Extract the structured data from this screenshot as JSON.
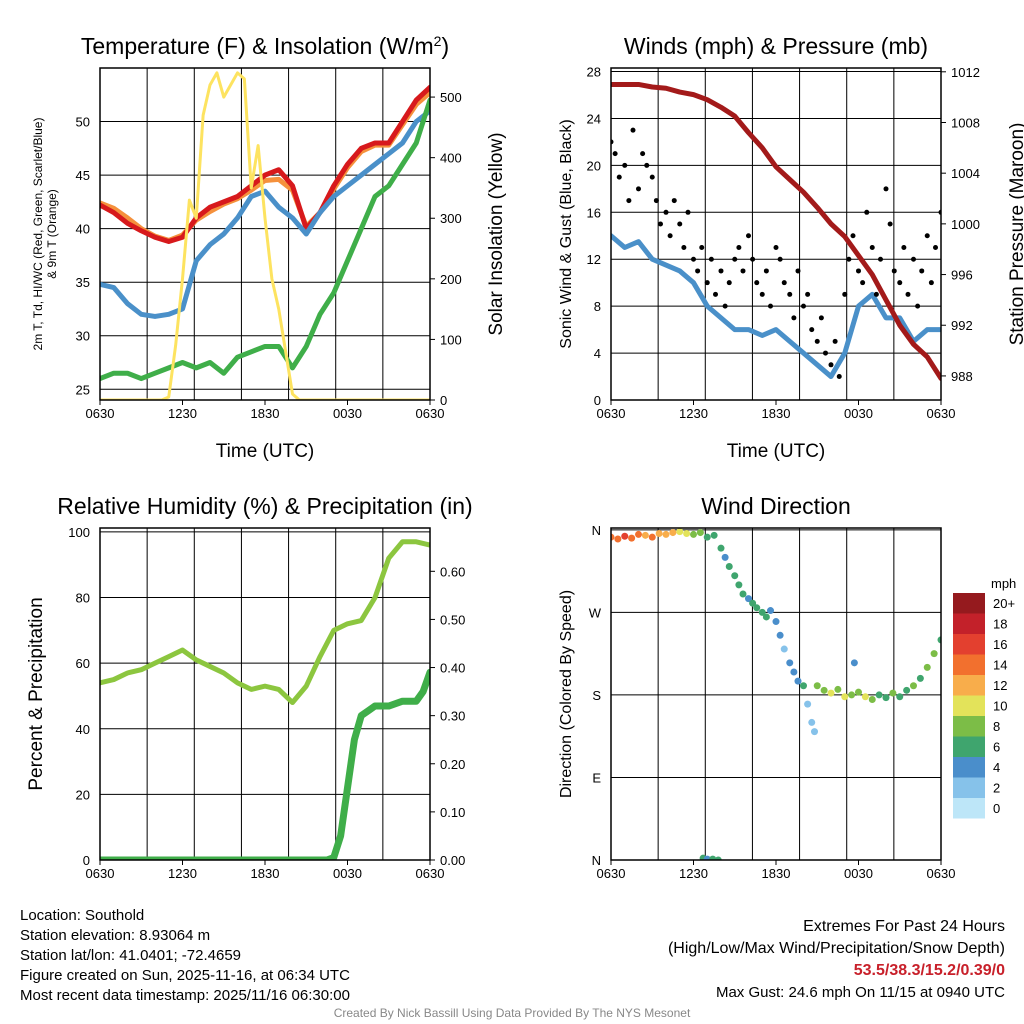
{
  "chart_data": [
    {
      "type": "line",
      "title": "Temperature (F) & Insolation (W/m²)",
      "xlabel": "Time (UTC)",
      "ylabel": "2m T, Td, HI/WC (Red, Green, Scarlet/Blue) & 9m T (Orange)",
      "ylabel_line1": "2m T, Td, HI/WC (Red, Green, Scarlet/Blue)",
      "ylabel_line2": "& 9m T (Orange)",
      "y2label": "Solar Insolation (Yellow)",
      "xticks": [
        "0630",
        "1230",
        "1830",
        "0030",
        "0630"
      ],
      "yticks": [
        "25",
        "30",
        "35",
        "40",
        "45",
        "50"
      ],
      "y2ticks": [
        "0",
        "100",
        "200",
        "300",
        "400",
        "500"
      ],
      "ylim": [
        24,
        55
      ],
      "y2lim": [
        0,
        548
      ],
      "xlim": [
        0,
        24
      ],
      "series": [
        {
          "name": "9m T",
          "color": "#f5913c",
          "axis": "left",
          "x": [
            0,
            1,
            2,
            3,
            4,
            5,
            6,
            7,
            8,
            9,
            10,
            11,
            12,
            13,
            14,
            15,
            16,
            17,
            18,
            19,
            20,
            21,
            22,
            23,
            24
          ],
          "y": [
            42.4,
            41.9,
            41,
            40,
            39.3,
            38.9,
            39.4,
            40.8,
            41.6,
            42.3,
            42.8,
            43.6,
            44.5,
            44.6,
            43.6,
            40.2,
            41.5,
            43.7,
            45.7,
            47.2,
            47.8,
            47.8,
            49.7,
            51.6,
            52.7
          ]
        },
        {
          "name": "2m T",
          "color": "#d7191c",
          "axis": "left",
          "x": [
            0,
            1,
            2,
            3,
            4,
            5,
            6,
            7,
            8,
            9,
            10,
            11,
            12,
            13,
            14,
            15,
            16,
            17,
            18,
            19,
            20,
            21,
            22,
            23,
            24
          ],
          "y": [
            42.2,
            41.5,
            40.5,
            39.8,
            39.2,
            38.8,
            39.2,
            41,
            42,
            42.5,
            43,
            44,
            45,
            45.5,
            44,
            40,
            41.5,
            44,
            46,
            47.5,
            48,
            48,
            50,
            52,
            53.2
          ]
        },
        {
          "name": "Td",
          "color": "#4a90c9",
          "axis": "left",
          "x": [
            0,
            1,
            2,
            3,
            4,
            5,
            6,
            7,
            8,
            9,
            10,
            11,
            12,
            13,
            14,
            15,
            16,
            17,
            18,
            19,
            20,
            21,
            22,
            23,
            24
          ],
          "y": [
            34.8,
            34.5,
            33,
            32,
            31.8,
            32,
            32.5,
            37,
            38.5,
            39.5,
            41,
            43,
            43.5,
            42,
            41,
            39.5,
            41.5,
            43,
            44,
            45,
            46,
            47,
            48,
            50,
            51
          ]
        },
        {
          "name": "HI/WC",
          "color": "#3fae49",
          "axis": "left",
          "x": [
            0,
            1,
            2,
            3,
            4,
            5,
            6,
            7,
            8,
            9,
            10,
            11,
            12,
            13,
            14,
            15,
            16,
            17,
            18,
            19,
            20,
            21,
            22,
            23,
            24
          ],
          "y": [
            26,
            26.5,
            26.5,
            26,
            26.5,
            27,
            27.5,
            27,
            27.5,
            26.5,
            28,
            28.5,
            29,
            29,
            27,
            29,
            32,
            34,
            37,
            40,
            43,
            44,
            46,
            48,
            52
          ]
        },
        {
          "name": "Solar Insolation",
          "color": "#fde360",
          "axis": "right",
          "x": [
            0,
            4.5,
            5,
            5.5,
            6,
            6.5,
            7,
            7.5,
            8,
            8.5,
            9,
            9.5,
            10,
            10.5,
            11,
            11.5,
            12,
            12.5,
            13,
            13.5,
            14,
            14.5,
            24
          ],
          "y": [
            0,
            0,
            5,
            90,
            200,
            330,
            300,
            470,
            520,
            540,
            500,
            520,
            540,
            530,
            350,
            420,
            300,
            200,
            150,
            80,
            10,
            0,
            0
          ]
        }
      ]
    },
    {
      "type": "line",
      "title": "Winds (mph) & Pressure (mb)",
      "xlabel": "Time (UTC)",
      "ylabel": "Sonic Wind & Gust (Blue, Black)",
      "y2label": "Station Pressure (Maroon)",
      "xticks": [
        "0630",
        "1230",
        "1830",
        "0030",
        "0630"
      ],
      "yticks": [
        "0",
        "4",
        "8",
        "12",
        "16",
        "20",
        "24",
        "28"
      ],
      "y2ticks": [
        "988",
        "992",
        "996",
        "1000",
        "1004",
        "1008",
        "1012"
      ],
      "ylim": [
        0,
        28.3
      ],
      "y2lim": [
        986.1,
        1012.3
      ],
      "xlim": [
        0,
        24
      ],
      "series": [
        {
          "name": "Sonic Wind",
          "color": "#4a90c9",
          "axis": "left",
          "x": [
            0,
            1,
            2,
            3,
            4,
            5,
            6,
            7,
            8,
            9,
            10,
            11,
            12,
            13,
            14,
            15,
            16,
            17,
            18,
            19,
            20,
            21,
            22,
            23,
            24
          ],
          "y": [
            14,
            13,
            13.5,
            12,
            11.5,
            11,
            10,
            8,
            7,
            6,
            6,
            5.5,
            6,
            5,
            4,
            3,
            2,
            4,
            8,
            9,
            7,
            7,
            5,
            6,
            6
          ]
        },
        {
          "name": "Gust",
          "color": "#000000",
          "axis": "left",
          "marker": "dot",
          "x": [
            0,
            0.3,
            0.6,
            1,
            1.3,
            1.6,
            2,
            2.3,
            2.6,
            3,
            3.3,
            3.6,
            4,
            4.3,
            4.6,
            5,
            5.3,
            5.6,
            6,
            6.3,
            6.6,
            7,
            7.3,
            7.6,
            8,
            8.3,
            8.6,
            9,
            9.3,
            9.6,
            10,
            10.3,
            10.6,
            11,
            11.3,
            11.6,
            12,
            12.3,
            12.6,
            13,
            13.3,
            13.6,
            14,
            14.3,
            14.6,
            15,
            15.3,
            15.6,
            16,
            16.3,
            16.6,
            17,
            17.3,
            17.6,
            18,
            18.3,
            18.6,
            19,
            19.3,
            19.6,
            20,
            20.3,
            20.6,
            21,
            21.3,
            21.6,
            22,
            22.3,
            22.6,
            23,
            23.3,
            23.6,
            24
          ],
          "y": [
            22,
            21,
            19,
            20,
            17,
            23,
            18,
            21,
            20,
            19,
            17,
            15,
            16,
            14,
            17,
            15,
            13,
            16,
            12,
            11,
            13,
            10,
            12,
            9,
            11,
            8,
            10,
            12,
            13,
            11,
            14,
            12,
            10,
            9,
            11,
            8,
            13,
            12,
            10,
            9,
            7,
            11,
            8,
            9,
            6,
            5,
            7,
            4,
            3,
            5,
            2,
            9,
            12,
            14,
            11,
            10,
            16,
            13,
            9,
            12,
            18,
            15,
            11,
            10,
            13,
            9,
            12,
            8,
            11,
            14,
            10,
            13,
            16
          ]
        },
        {
          "name": "Station Pressure",
          "color": "#a31a1a",
          "axis": "right",
          "x": [
            0,
            1,
            2,
            3,
            4,
            5,
            6,
            7,
            8,
            9,
            10,
            11,
            12,
            13,
            14,
            15,
            16,
            17,
            18,
            19,
            20,
            21,
            22,
            23,
            24
          ],
          "y": [
            1011,
            1011,
            1011,
            1010.8,
            1010.7,
            1010.4,
            1010.2,
            1009.8,
            1009.2,
            1008.5,
            1007.2,
            1006,
            1004.5,
            1003.5,
            1002.5,
            1001.3,
            1000,
            999,
            997.5,
            996,
            994,
            992,
            990.5,
            989.5,
            987.8
          ]
        }
      ]
    },
    {
      "type": "line",
      "title": "Relative Humidity (%) & Precipitation (in)",
      "ylabel": "Percent & Precipitation",
      "xticks": [
        "0630",
        "1230",
        "1830",
        "0030",
        "0630"
      ],
      "yticks": [
        "0",
        "20",
        "40",
        "60",
        "80",
        "100"
      ],
      "y2ticks": [
        "0.00",
        "0.10",
        "0.20",
        "0.30",
        "0.40",
        "0.50",
        "0.60"
      ],
      "ylim": [
        0,
        101.2
      ],
      "y2lim": [
        0,
        0.69
      ],
      "xlim": [
        0,
        24
      ],
      "series": [
        {
          "name": "Relative Humidity",
          "color": "#8cc63f",
          "axis": "left",
          "x": [
            0,
            1,
            2,
            3,
            4,
            5,
            6,
            7,
            8,
            9,
            10,
            11,
            12,
            13,
            14,
            15,
            16,
            17,
            18,
            19,
            20,
            21,
            22,
            23,
            24
          ],
          "y": [
            54,
            55,
            57,
            58,
            60,
            62,
            64,
            61,
            59,
            57,
            54,
            52,
            53,
            52,
            48,
            53,
            62,
            70,
            72,
            73,
            80,
            92,
            97,
            97,
            96
          ]
        },
        {
          "name": "Precipitation",
          "color": "#3fae49",
          "axis": "right",
          "x": [
            0,
            16.5,
            17,
            17.5,
            18,
            18.5,
            19,
            19.5,
            20,
            21,
            22,
            23,
            23.5,
            24
          ],
          "y": [
            0,
            0,
            0.005,
            0.05,
            0.15,
            0.25,
            0.3,
            0.31,
            0.32,
            0.32,
            0.33,
            0.33,
            0.35,
            0.39
          ]
        }
      ]
    },
    {
      "type": "scatter",
      "title": "Wind Direction",
      "ylabel": "Direction (Colored By Speed)",
      "xticks": [
        "0630",
        "1230",
        "1830",
        "0030",
        "0630"
      ],
      "yticks": [
        "N",
        "E",
        "S",
        "W",
        "N"
      ],
      "ylim": [
        0,
        362
      ],
      "xlim": [
        0,
        24
      ],
      "colorbar": {
        "title": "mph",
        "labels": [
          "0",
          "2",
          "4",
          "6",
          "8",
          "10",
          "12",
          "14",
          "16",
          "18",
          "20+"
        ],
        "colors": [
          "#bde6f8",
          "#86c2ea",
          "#4a8ecb",
          "#3fa56e",
          "#7cbd47",
          "#e3e35a",
          "#f8ad4b",
          "#f2702e",
          "#e3402f",
          "#c3212a",
          "#951a1e"
        ]
      },
      "points": [
        [
          0,
          352,
          14
        ],
        [
          0.5,
          350,
          13
        ],
        [
          1,
          353,
          15
        ],
        [
          1.5,
          351,
          14
        ],
        [
          2,
          355,
          13
        ],
        [
          2.5,
          354,
          12
        ],
        [
          3,
          352,
          14
        ],
        [
          3.5,
          356,
          12
        ],
        [
          4,
          355,
          11
        ],
        [
          4.5,
          357,
          12
        ],
        [
          5,
          358,
          10
        ],
        [
          5.5,
          356,
          9
        ],
        [
          6,
          355,
          8
        ],
        [
          6.5,
          357,
          7
        ],
        [
          7,
          352,
          6
        ],
        [
          7.5,
          354,
          5
        ],
        [
          6.7,
          2,
          5
        ],
        [
          7,
          1,
          4
        ],
        [
          7.4,
          1,
          6
        ],
        [
          7.8,
          0,
          5
        ],
        [
          8,
          340,
          5
        ],
        [
          8.3,
          330,
          4
        ],
        [
          8.6,
          320,
          6
        ],
        [
          9,
          310,
          5
        ],
        [
          9.3,
          300,
          6
        ],
        [
          9.6,
          290,
          5
        ],
        [
          10,
          285,
          4
        ],
        [
          10.3,
          280,
          6
        ],
        [
          10.6,
          275,
          5
        ],
        [
          11,
          270,
          6
        ],
        [
          11.3,
          265,
          5
        ],
        [
          11.6,
          272,
          4
        ],
        [
          12,
          260,
          3
        ],
        [
          12.3,
          245,
          3
        ],
        [
          12.6,
          230,
          2
        ],
        [
          13,
          215,
          4
        ],
        [
          13.3,
          205,
          3
        ],
        [
          13.6,
          195,
          4
        ],
        [
          14,
          190,
          5
        ],
        [
          14.3,
          170,
          2
        ],
        [
          14.6,
          150,
          2
        ],
        [
          14.8,
          140,
          2
        ],
        [
          15,
          190,
          7
        ],
        [
          15.5,
          185,
          8
        ],
        [
          16,
          182,
          9
        ],
        [
          16.5,
          186,
          7
        ],
        [
          17,
          178,
          10
        ],
        [
          17.5,
          180,
          8
        ],
        [
          18,
          183,
          7
        ],
        [
          18.5,
          178,
          9
        ],
        [
          19,
          175,
          7
        ],
        [
          19.5,
          180,
          6
        ],
        [
          20,
          177,
          5
        ],
        [
          20.5,
          182,
          7
        ],
        [
          21,
          178,
          6
        ],
        [
          21.5,
          185,
          6
        ],
        [
          22,
          190,
          7
        ],
        [
          22.5,
          198,
          6
        ],
        [
          23,
          210,
          7
        ],
        [
          23.5,
          225,
          8
        ],
        [
          24,
          240,
          6
        ],
        [
          17.7,
          215,
          4
        ]
      ]
    }
  ],
  "info": {
    "location": "Location: Southold",
    "elevation": "Station elevation: 8.93064 m",
    "latlon": "Station lat/lon: 41.0401; -72.4659",
    "created": "Figure created on Sun, 2025-11-16, at 06:34 UTC",
    "recent": "Most recent data timestamp: 2025/11/16 06:30:00"
  },
  "extremes": {
    "title": "Extremes For Past 24 Hours",
    "subtitle": "(High/Low/Max Wind/Precipitation/Snow Depth)",
    "values": "53.5/38.3/15.2/0.39/0",
    "gust": "Max Gust: 24.6 mph On 11/15 at 0940 UTC"
  },
  "credit": "Created By Nick Bassill Using Data Provided By The NYS Mesonet"
}
